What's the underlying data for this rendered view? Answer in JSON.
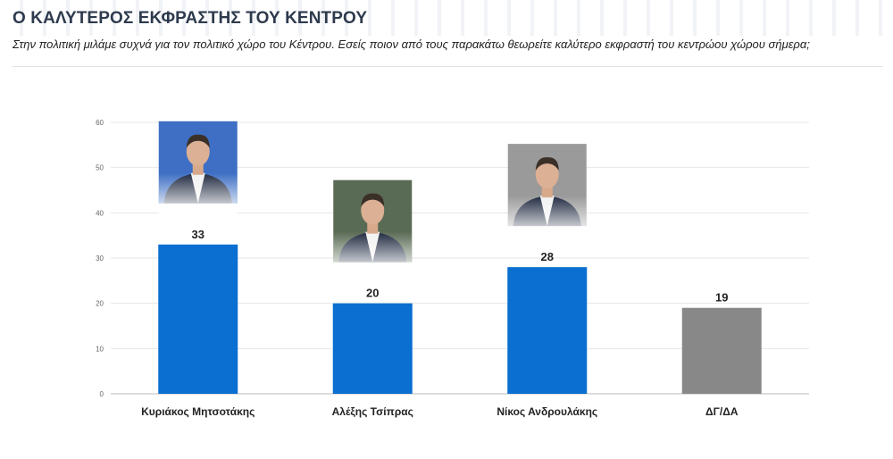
{
  "header": {
    "title": "Ο ΚΑΛΥΤΕΡΟΣ ΕΚΦΡΑΣΤΗΣ ΤΟΥ ΚΕΝΤΡΟΥ",
    "subtitle": "Στην πολιτική μιλάμε συχνά για τον πολιτικό χώρο του Κέντρου. Εσείς ποιον από τους παρακάτω θεωρείτε καλύτερο εκφραστή του κεντρώου χώρου σήμερα;"
  },
  "chart_data": {
    "type": "bar",
    "title": "Ο ΚΑΛΥΤΕΡΟΣ ΕΚΦΡΑΣΤΗΣ ΤΟΥ ΚΕΝΤΡΟΥ",
    "categories": [
      "Κυριάκος Μητσοτάκης",
      "Αλέξης Τσίπρας",
      "Νίκος Ανδρουλάκης",
      "ΔΓ/ΔΑ"
    ],
    "values": [
      33,
      20,
      28,
      19
    ],
    "bar_colors": [
      "#0a6fd0",
      "#0a6fd0",
      "#0a6fd0",
      "#888888"
    ],
    "ylim": [
      0,
      60
    ],
    "yticks": [
      0,
      10,
      20,
      30,
      40,
      50,
      60
    ],
    "grid": true,
    "portraits": [
      {
        "category": "Κυριάκος Μητσοτάκης",
        "icon": "portrait-photo",
        "bg": "#3e6fc4"
      },
      {
        "category": "Αλέξης Τσίπρας",
        "icon": "portrait-photo",
        "bg": "#5a6b55"
      },
      {
        "category": "Νίκος Ανδρουλάκης",
        "icon": "portrait-photo",
        "bg": "#9a9a9a"
      },
      null
    ]
  }
}
